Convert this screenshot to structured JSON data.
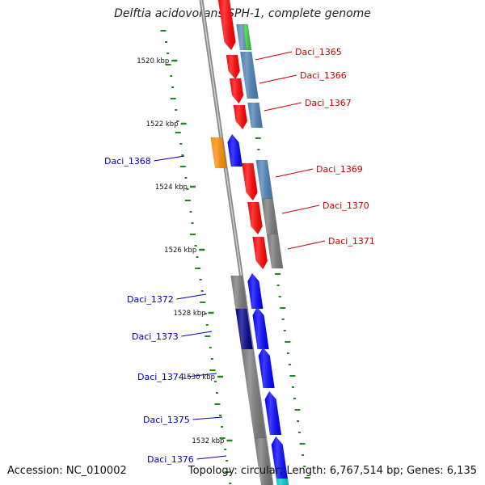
{
  "title": "Delftia acidovorans SPH-1, complete genome",
  "accession": "Accession: NC_010002",
  "topology": "Topology: circular; Length: 6,767,514 bp; Genes: 6,135",
  "colors": {
    "backbone": "#8a8a8a",
    "label_forward": "#cc0000",
    "label_reverse": "#0000bb",
    "tick_major": "#1a8a1a",
    "tick_minor": "#1a8a1a"
  },
  "scale_labels": [
    {
      "text": "1520 kbp",
      "kbp": 1520
    },
    {
      "text": "1522 kbp",
      "kbp": 1522
    },
    {
      "text": "1524 kbp",
      "kbp": 1524
    },
    {
      "text": "1526 kbp",
      "kbp": 1526
    },
    {
      "text": "1528 kbp",
      "kbp": 1528
    },
    {
      "text": "1530 kbp",
      "kbp": 1530
    },
    {
      "text": "1532 kbp",
      "kbp": 1532
    }
  ],
  "gene_labels": [
    {
      "name": "Daci_1365",
      "strand": "forward"
    },
    {
      "name": "Daci_1366",
      "strand": "forward"
    },
    {
      "name": "Daci_1367",
      "strand": "forward"
    },
    {
      "name": "Daci_1368",
      "strand": "reverse"
    },
    {
      "name": "Daci_1369",
      "strand": "forward"
    },
    {
      "name": "Daci_1370",
      "strand": "forward"
    },
    {
      "name": "Daci_1371",
      "strand": "forward"
    },
    {
      "name": "Daci_1372",
      "strand": "reverse"
    },
    {
      "name": "Daci_1373",
      "strand": "reverse"
    },
    {
      "name": "Daci_1374",
      "strand": "reverse"
    },
    {
      "name": "Daci_1375",
      "strand": "reverse"
    },
    {
      "name": "Daci_1376",
      "strand": "reverse"
    }
  ],
  "features": [
    {
      "id": "f1",
      "track": "cds_outer_fwd",
      "color": "#ff0000"
    },
    {
      "id": "f2",
      "track": "cog_outer_fwd",
      "color": "#5a86b8"
    },
    {
      "id": "f3",
      "track": "cog_outer_fwd2",
      "color": "#33cc33"
    },
    {
      "id": "f4",
      "track": "cds_outer_fwd",
      "color": "#ff0000"
    },
    {
      "id": "f5",
      "track": "cog_outer_fwd",
      "color": "#4a7fb5"
    },
    {
      "id": "f6",
      "track": "cds_outer_fwd",
      "color": "#ff0000"
    },
    {
      "id": "f7",
      "track": "cds_outer_fwd",
      "color": "#ff0000"
    },
    {
      "id": "f8",
      "track": "cog_outer_fwd",
      "color": "#4a7fb5"
    },
    {
      "id": "f9",
      "track": "cog_rev",
      "color": "#ff8c00"
    },
    {
      "id": "f10",
      "track": "cds_rev",
      "color": "#0000ff"
    },
    {
      "id": "f11",
      "track": "cds_outer_fwd",
      "color": "#ff0000"
    },
    {
      "id": "f12",
      "track": "cog_outer_fwd",
      "color": "#4a7fb5"
    },
    {
      "id": "f13",
      "track": "cds_outer_fwd",
      "color": "#ff0000"
    },
    {
      "id": "f14",
      "track": "cog_outer_fwd",
      "color": "#777777"
    },
    {
      "id": "f15",
      "track": "cds_outer_fwd",
      "color": "#ff0000"
    },
    {
      "id": "f16",
      "track": "cog_outer_fwd",
      "color": "#777777"
    },
    {
      "id": "f17",
      "track": "cog_rev",
      "color": "#777777"
    },
    {
      "id": "f18",
      "track": "cds_rev",
      "color": "#0000ff"
    },
    {
      "id": "f19",
      "track": "cog_rev",
      "color": "#000088"
    },
    {
      "id": "f20",
      "track": "cds_rev",
      "color": "#0000ff"
    },
    {
      "id": "f21",
      "track": "cog_rev",
      "color": "#777777"
    },
    {
      "id": "f22",
      "track": "cds_rev",
      "color": "#0000ff"
    },
    {
      "id": "f23",
      "track": "cds_rev",
      "color": "#0000ff"
    },
    {
      "id": "f24",
      "track": "cds_rev",
      "color": "#0000ff"
    },
    {
      "id": "f25",
      "track": "cog_rev",
      "color": "#777777"
    },
    {
      "id": "f26",
      "track": "cds_rev",
      "color": "#00cccc"
    }
  ]
}
